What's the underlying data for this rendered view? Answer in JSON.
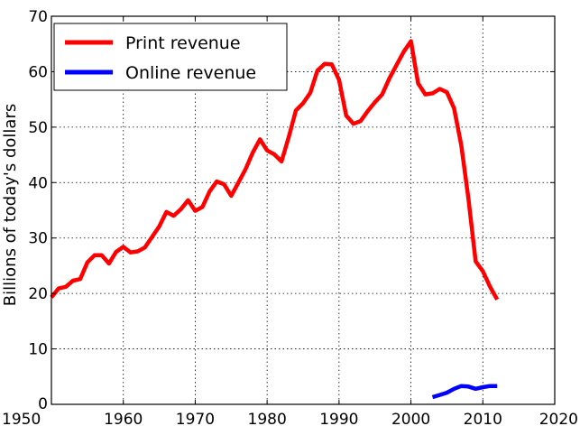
{
  "chart_data": {
    "type": "line",
    "title": "",
    "xlabel": "",
    "ylabel": "Billions of today's dollars",
    "xlim": [
      1950,
      2020
    ],
    "ylim": [
      0,
      70
    ],
    "xticks": [
      1950,
      1960,
      1970,
      1980,
      1990,
      2000,
      2010,
      2020
    ],
    "yticks": [
      0,
      10,
      20,
      30,
      40,
      50,
      60,
      70
    ],
    "grid": true,
    "legend_position": "top-left",
    "series": [
      {
        "name": "Print revenue",
        "color": "#ff0000",
        "x": [
          1950,
          1951,
          1952,
          1953,
          1954,
          1955,
          1956,
          1957,
          1958,
          1959,
          1960,
          1961,
          1962,
          1963,
          1964,
          1965,
          1966,
          1967,
          1968,
          1969,
          1970,
          1971,
          1972,
          1973,
          1974,
          1975,
          1976,
          1977,
          1978,
          1979,
          1980,
          1981,
          1982,
          1983,
          1984,
          1985,
          1986,
          1987,
          1988,
          1989,
          1990,
          1991,
          1992,
          1993,
          1994,
          1995,
          1996,
          1997,
          1998,
          1999,
          2000,
          2001,
          2002,
          2003,
          2004,
          2005,
          2006,
          2007,
          2008,
          2009,
          2010,
          2011,
          2012
        ],
        "values": [
          19.3,
          20.9,
          21.2,
          22.3,
          22.6,
          25.6,
          26.9,
          26.9,
          25.4,
          27.5,
          28.4,
          27.4,
          27.6,
          28.3,
          30.2,
          32.1,
          34.7,
          34.0,
          35.2,
          36.8,
          34.9,
          35.6,
          38.4,
          40.2,
          39.7,
          37.6,
          40.0,
          42.4,
          45.4,
          47.8,
          45.8,
          45.1,
          43.8,
          48.2,
          53.0,
          54.3,
          56.2,
          60.2,
          61.4,
          61.3,
          58.5,
          52.1,
          50.6,
          51.1,
          52.9,
          54.5,
          55.9,
          58.8,
          61.2,
          63.6,
          65.5,
          57.9,
          55.9,
          56.1,
          56.9,
          56.3,
          53.4,
          46.7,
          37.1,
          25.8,
          24.0,
          21.2,
          18.9
        ]
      },
      {
        "name": "Online revenue",
        "color": "#0000ff",
        "x": [
          2003,
          2004,
          2005,
          2006,
          2007,
          2008,
          2009,
          2010,
          2011,
          2012
        ],
        "values": [
          1.3,
          1.7,
          2.1,
          2.8,
          3.3,
          3.2,
          2.8,
          3.1,
          3.3,
          3.3
        ]
      }
    ]
  }
}
